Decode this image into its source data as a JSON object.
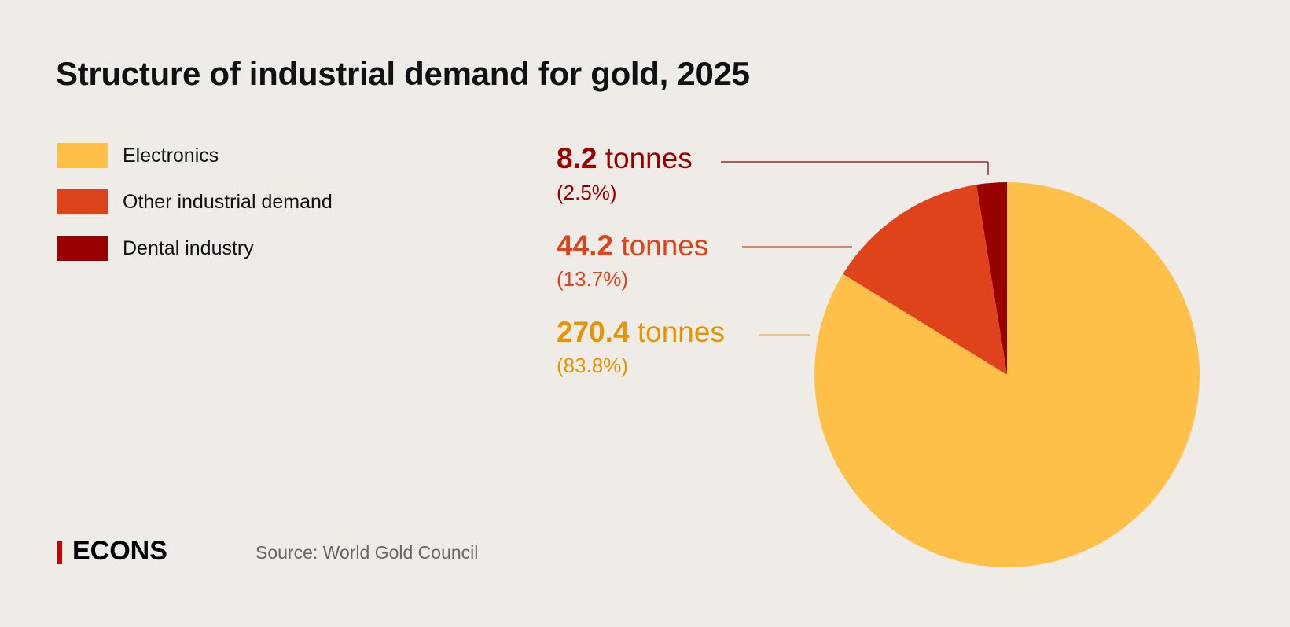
{
  "title": "Structure of industrial demand for gold, 2025",
  "footer": {
    "logo": "ECONS",
    "source": "Source: World Gold Council"
  },
  "chart_data": {
    "type": "pie",
    "title": "Structure of industrial demand for gold, 2025",
    "unit": "tonnes",
    "legend_position": "top-left",
    "slices": [
      {
        "name": "Electronics",
        "value": 270.4,
        "value_label": "270.4",
        "unit_label": "tonnes",
        "percent": 83.8,
        "percent_label": "(83.8%)",
        "color": "#ffc04a",
        "label_color": "#e69500"
      },
      {
        "name": "Other industrial demand",
        "value": 44.2,
        "value_label": "44.2",
        "unit_label": "tonnes",
        "percent": 13.7,
        "percent_label": "(13.7%)",
        "color": "#df431b",
        "label_color": "#df431b"
      },
      {
        "name": "Dental industry",
        "value": 8.2,
        "value_label": "8.2",
        "unit_label": "tonnes",
        "percent": 2.5,
        "percent_label": "(2.5%)",
        "color": "#990000",
        "label_color": "#990000"
      }
    ]
  }
}
